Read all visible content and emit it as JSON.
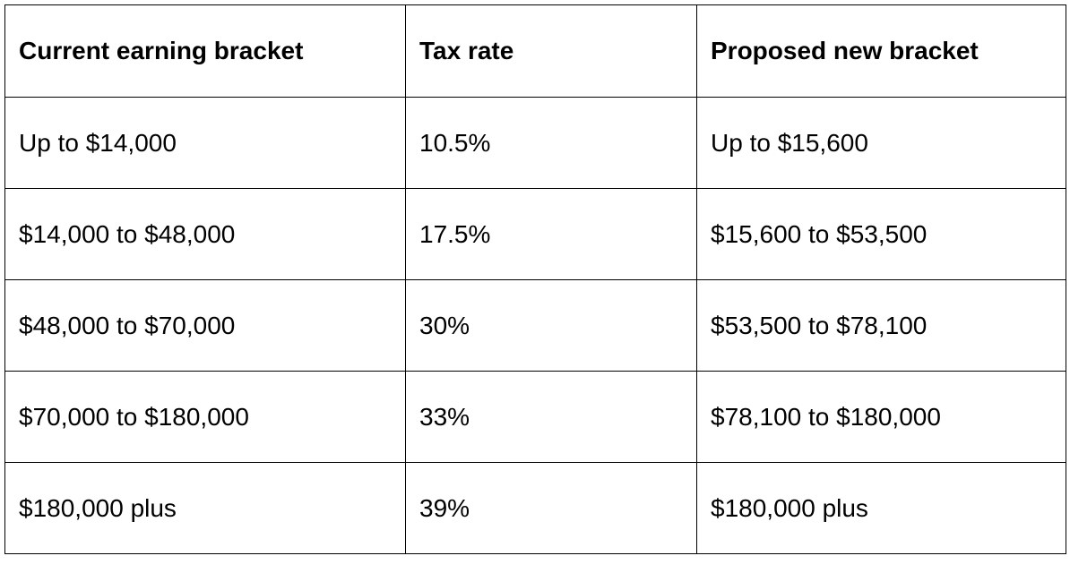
{
  "table": {
    "headers": [
      "Current earning bracket",
      "Tax rate",
      "Proposed new bracket"
    ],
    "rows": [
      [
        "Up to $14,000",
        "10.5%",
        "Up to $15,600"
      ],
      [
        "$14,000 to $48,000",
        "17.5%",
        "$15,600 to $53,500"
      ],
      [
        "$48,000 to $70,000",
        "30%",
        "$53,500 to $78,100"
      ],
      [
        "$70,000 to $180,000",
        "33%",
        "$78,100 to $180,000"
      ],
      [
        "$180,000 plus",
        "39%",
        "$180,000 plus"
      ]
    ]
  }
}
